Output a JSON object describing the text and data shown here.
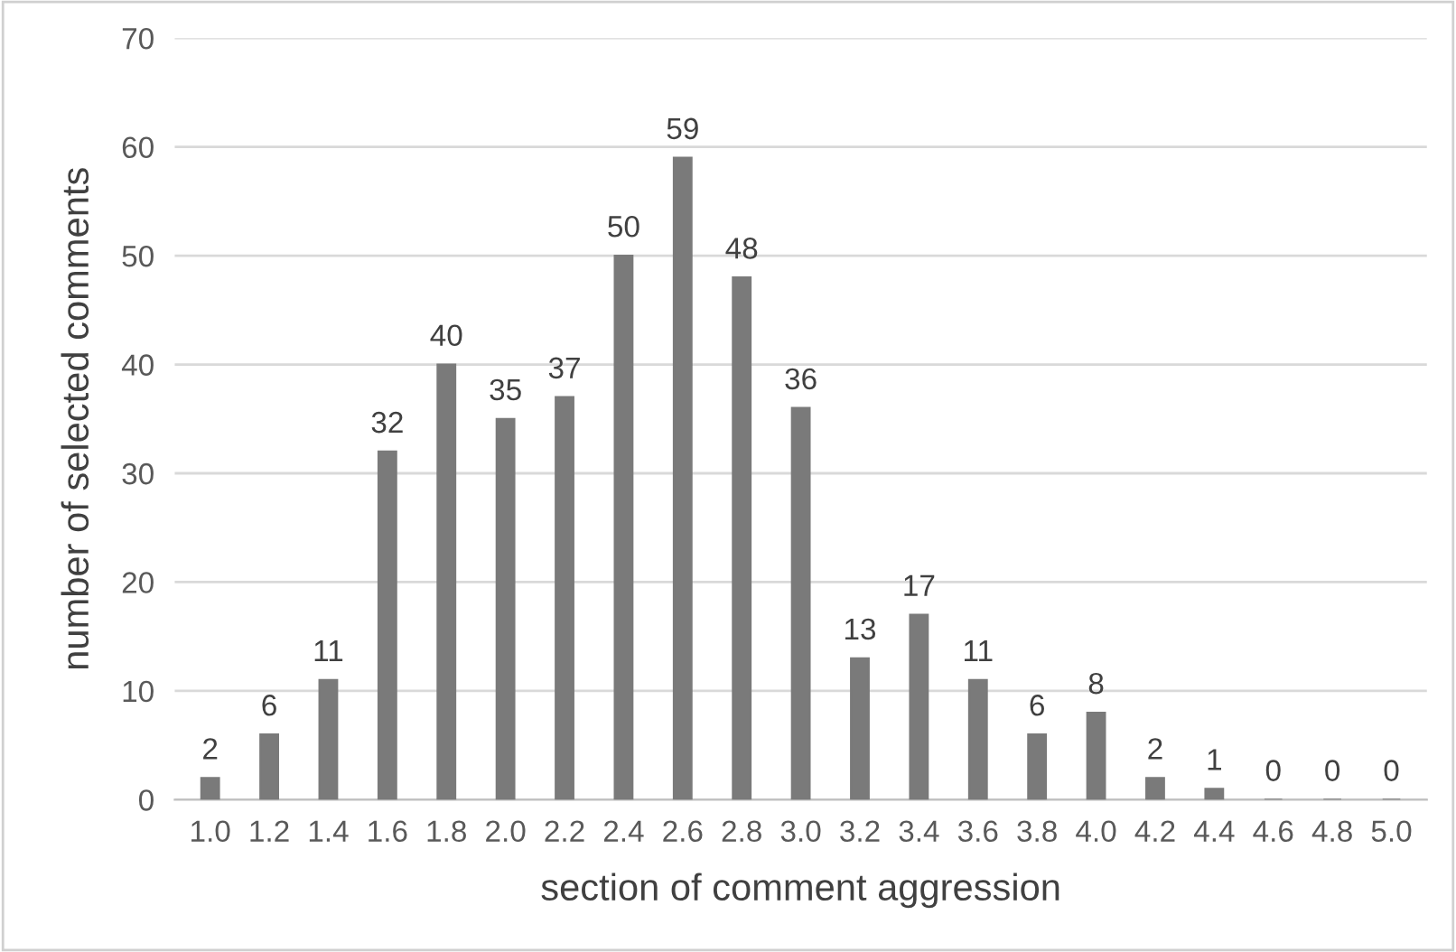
{
  "chart_data": {
    "type": "bar",
    "xlabel": "section of comment aggression",
    "ylabel": "number of selected comments",
    "categories": [
      "1.0",
      "1.2",
      "1.4",
      "1.6",
      "1.8",
      "2.0",
      "2.2",
      "2.4",
      "2.6",
      "2.8",
      "3.0",
      "3.2",
      "3.4",
      "3.6",
      "3.8",
      "4.0",
      "4.2",
      "4.4",
      "4.6",
      "4.8",
      "5.0"
    ],
    "values": [
      2,
      6,
      11,
      32,
      40,
      35,
      37,
      50,
      59,
      48,
      36,
      13,
      17,
      11,
      6,
      8,
      2,
      1,
      0,
      0,
      0
    ],
    "color": "#7a7a7a",
    "ylim": [
      0,
      70
    ],
    "yticks": [
      0,
      10,
      20,
      30,
      40,
      50,
      60,
      70
    ],
    "grid": "y",
    "data_labels": true
  }
}
